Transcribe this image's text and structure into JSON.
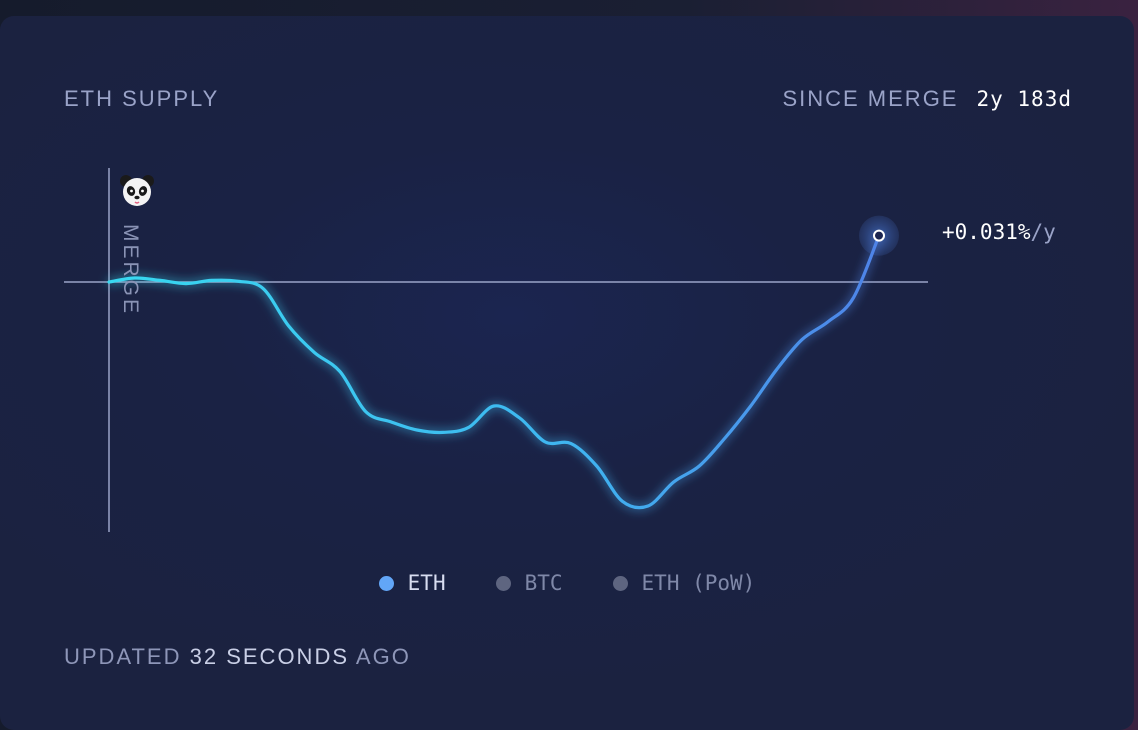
{
  "card": {
    "title": "ETH SUPPLY",
    "since_label": "SINCE MERGE",
    "since_value": "2y 183d",
    "rate_value": "+0.031%",
    "rate_unit": "/y",
    "merge_label": "MERGE",
    "updated_prefix": "UPDATED",
    "updated_value": "32 SECONDS",
    "updated_suffix": "AGO"
  },
  "legend": [
    {
      "label": "ETH",
      "active": true
    },
    {
      "label": "BTC",
      "active": false
    },
    {
      "label": "ETH (PoW)",
      "active": false
    }
  ],
  "colors": {
    "line_start": "#38d9f0",
    "line_end": "#4f83e8",
    "baseline": "#9aa3c8",
    "accent": "#62a6f7"
  },
  "chart_data": {
    "type": "line",
    "series": [
      {
        "name": "ETH",
        "values": [
          0,
          0.05,
          0.02,
          -0.02,
          0.02,
          0.01,
          -0.08,
          -0.55,
          -0.88,
          -1.12,
          -1.62,
          -1.75,
          -1.85,
          -1.88,
          -1.82,
          -1.55,
          -1.7,
          -2.0,
          -2.02,
          -2.3,
          -2.74,
          -2.8,
          -2.5,
          -2.3,
          -1.95,
          -1.55,
          -1.1,
          -0.72,
          -0.5,
          -0.2,
          0.58
        ]
      }
    ],
    "baseline": 0,
    "grid": false,
    "ylim": [
      -3.2,
      1.4
    ]
  }
}
